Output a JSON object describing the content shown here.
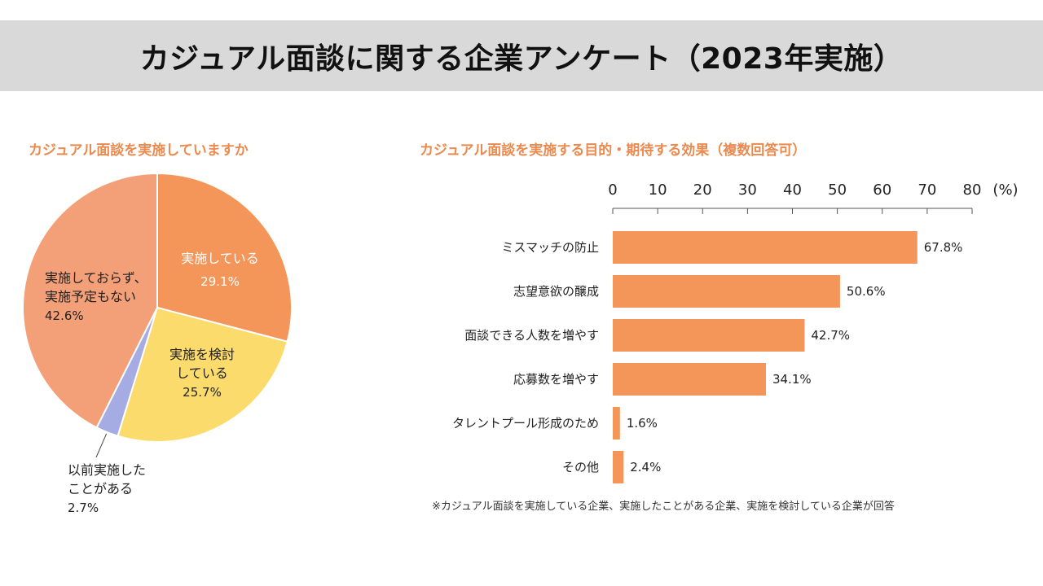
{
  "title": "カジュアル面談に関する企業アンケート（2023年実施）",
  "colors": {
    "title_bg": "#d9d9d9",
    "subtitle": "#ea8a4f",
    "bar": "#f4955a",
    "pie_implemented": "#f4955a",
    "pie_considering": "#fadb6c",
    "pie_past": "#a5abe3",
    "pie_none": "#f39f78"
  },
  "chart_data": [
    {
      "type": "pie",
      "title": "カジュアル面談を実施していますか",
      "slices": [
        {
          "label": "実施している",
          "value": 29.1,
          "value_label": "29.1%",
          "color": "#f4955a"
        },
        {
          "label": "実施を検討 している",
          "label_lines": [
            "実施を検討",
            "している"
          ],
          "value": 25.7,
          "value_label": "25.7%",
          "color": "#fadb6c"
        },
        {
          "label": "以前実施した ことがある",
          "label_lines": [
            "以前実施した",
            "ことがある"
          ],
          "value": 2.7,
          "value_label": "2.7%",
          "color": "#a5abe3"
        },
        {
          "label": "実施しておらず、 実施予定もない",
          "label_lines": [
            "実施しておらず、",
            "実施予定もない"
          ],
          "value": 42.6,
          "value_label": "42.6%",
          "color": "#f39f78"
        }
      ]
    },
    {
      "type": "bar",
      "orientation": "horizontal",
      "title": "カジュアル面談を実施する目的・期待する効果（複数回答可）",
      "categories": [
        "ミスマッチの防止",
        "志望意欲の醸成",
        "面談できる人数を増やす",
        "応募数を増やす",
        "タレントプール形成のため",
        "その他"
      ],
      "values": [
        67.8,
        50.6,
        42.7,
        34.1,
        1.6,
        2.4
      ],
      "value_labels": [
        "67.8%",
        "50.6%",
        "42.7%",
        "34.1%",
        "1.6%",
        "2.4%"
      ],
      "xlim": [
        0,
        80
      ],
      "ticks": [
        "0",
        "10",
        "20",
        "30",
        "40",
        "50",
        "60",
        "70",
        "80"
      ],
      "unit_label": "(%)"
    }
  ],
  "footnote": "※カジュアル面談を実施している企業、実施したことがある企業、実施を検討している企業が回答"
}
